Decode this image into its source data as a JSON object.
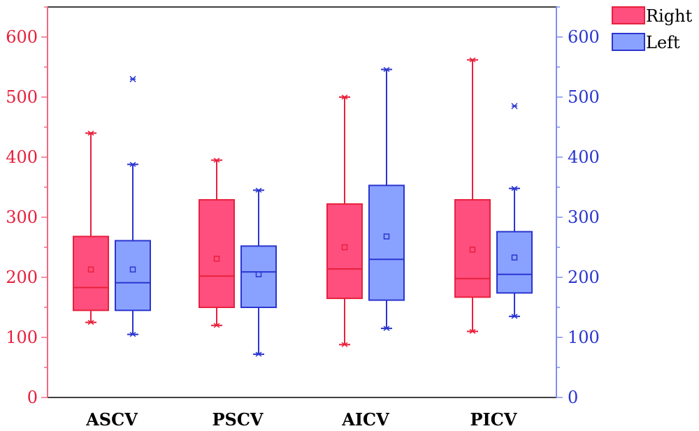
{
  "chart_data": {
    "type": "boxplot",
    "title": "",
    "xlabel": "",
    "ylabel": "",
    "categories": [
      "ASCV",
      "PSCV",
      "AICV",
      "PICV"
    ],
    "ylim_left": [
      0,
      650
    ],
    "ylim_right": [
      0,
      650
    ],
    "yticks_left": [
      0,
      100,
      200,
      300,
      400,
      500,
      600
    ],
    "yticks_right": [
      0,
      100,
      200,
      300,
      400,
      500,
      600
    ],
    "yticks_left_labels": [
      "0",
      "100",
      "200",
      "300",
      "400",
      "500",
      "600"
    ],
    "yticks_right_labels": [
      "0",
      "100",
      "200",
      "300",
      "400",
      "500",
      "600"
    ],
    "legend_position": "top-right",
    "grid": false,
    "series": [
      {
        "name": "Right",
        "fill": "#ff4f7e",
        "stroke": "#e8203c",
        "boxes": [
          {
            "min": 125,
            "q1": 145,
            "median": 183,
            "q3": 268,
            "max": 440,
            "mean": 213,
            "outliers": []
          },
          {
            "min": 120,
            "q1": 150,
            "median": 202,
            "q3": 329,
            "max": 395,
            "mean": 231,
            "outliers": []
          },
          {
            "min": 88,
            "q1": 165,
            "median": 214,
            "q3": 322,
            "max": 500,
            "mean": 250,
            "outliers": []
          },
          {
            "min": 110,
            "q1": 167,
            "median": 198,
            "q3": 329,
            "max": 562,
            "mean": 246,
            "outliers": []
          }
        ]
      },
      {
        "name": "Left",
        "fill": "#8aa2ff",
        "stroke": "#2a35d0",
        "boxes": [
          {
            "min": 105,
            "q1": 145,
            "median": 191,
            "q3": 261,
            "max": 388,
            "mean": 213,
            "outliers": [
              530
            ]
          },
          {
            "min": 72,
            "q1": 150,
            "median": 209,
            "q3": 252,
            "max": 345,
            "mean": 205,
            "outliers": []
          },
          {
            "min": 115,
            "q1": 162,
            "median": 230,
            "q3": 353,
            "max": 546,
            "mean": 268,
            "outliers": []
          },
          {
            "min": 135,
            "q1": 174,
            "median": 205,
            "q3": 276,
            "max": 348,
            "mean": 233,
            "outliers": [
              485
            ]
          }
        ]
      }
    ]
  }
}
